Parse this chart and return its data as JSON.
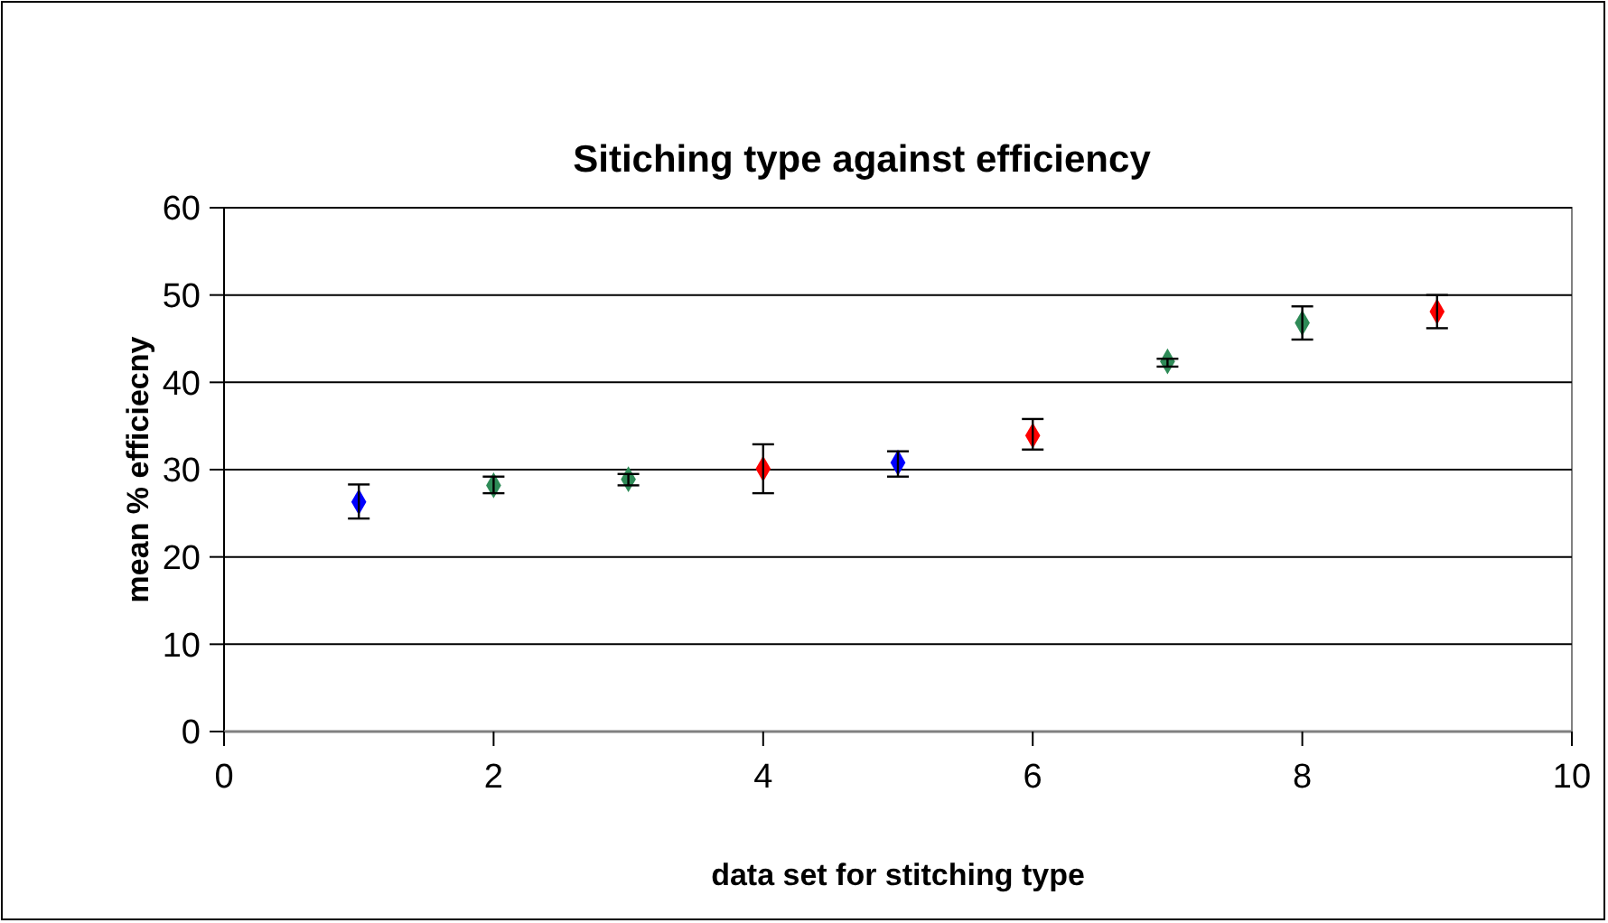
{
  "chart_data": {
    "type": "scatter",
    "title": "Sitiching type against efficiency",
    "xlabel": "data set for stitching type",
    "ylabel": "mean % efficiecny",
    "x": [
      1,
      2,
      3,
      4,
      5,
      6,
      7,
      8,
      9
    ],
    "values": [
      26.3,
      28.2,
      28.9,
      30.1,
      30.8,
      33.9,
      42.4,
      46.8,
      48.1
    ],
    "errors": [
      [
        24.4,
        28.3
      ],
      [
        27.3,
        29.2
      ],
      [
        28.2,
        29.5
      ],
      [
        27.3,
        32.9
      ],
      [
        29.2,
        32.1
      ],
      [
        32.3,
        35.8
      ],
      [
        41.8,
        42.7
      ],
      [
        44.9,
        48.7
      ],
      [
        46.2,
        50.0
      ]
    ],
    "colors": [
      "#0000ff",
      "#2e8b57",
      "#2e8b57",
      "#ff0000",
      "#0000ff",
      "#ff0000",
      "#2e8b57",
      "#2e8b57",
      "#ff0000"
    ],
    "marker": "diamond",
    "xlim": [
      0,
      10
    ],
    "xticks": [
      0,
      2,
      4,
      6,
      8,
      10
    ],
    "ylim": [
      0,
      60
    ],
    "yticks": [
      0,
      10,
      20,
      30,
      40,
      50,
      60
    ],
    "grid": "y"
  }
}
